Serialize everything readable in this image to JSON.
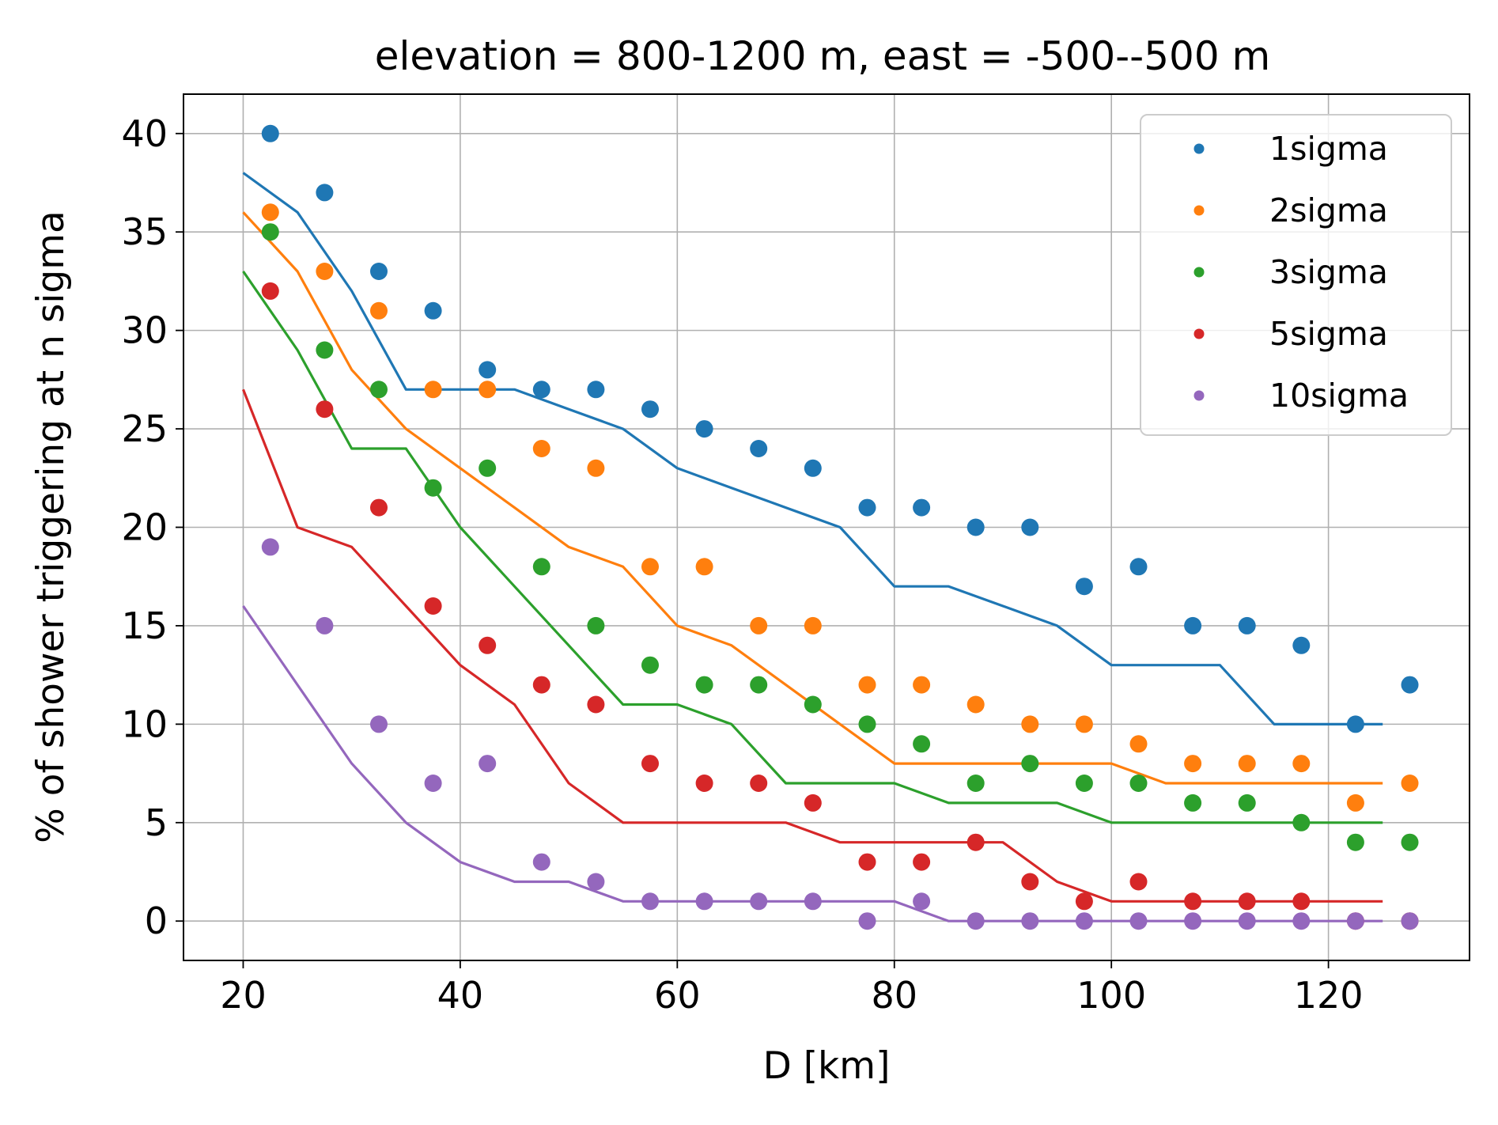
{
  "chart_data": {
    "type": "scatter",
    "title": "elevation = 800-1200 m, east = -500--500 m",
    "xlabel": "D [km]",
    "ylabel": "% of shower triggering at n sigma",
    "xlim": [
      14.5,
      133
    ],
    "ylim": [
      -2,
      42
    ],
    "xticks": [
      20,
      40,
      60,
      80,
      100,
      120
    ],
    "yticks": [
      0,
      5,
      10,
      15,
      20,
      25,
      30,
      35,
      40
    ],
    "grid": true,
    "legend_position": "top-right",
    "line_x": [
      20,
      25,
      30,
      35,
      40,
      45,
      50,
      55,
      60,
      65,
      70,
      75,
      80,
      85,
      90,
      95,
      100,
      105,
      110,
      115,
      120,
      125
    ],
    "point_x": [
      22.5,
      27.5,
      32.5,
      37.5,
      42.5,
      47.5,
      52.5,
      57.5,
      62.5,
      67.5,
      72.5,
      77.5,
      82.5,
      87.5,
      92.5,
      97.5,
      102.5,
      107.5,
      112.5,
      117.5,
      122.5,
      127.5
    ],
    "series": [
      {
        "name": "1sigma",
        "color": "#1f77b4",
        "points": [
          40,
          37,
          33,
          31,
          28,
          27,
          27,
          26,
          25,
          24,
          23,
          21,
          21,
          20,
          20,
          17,
          18,
          15,
          15,
          14,
          10,
          12
        ],
        "line": [
          38,
          36,
          32,
          27,
          27,
          27,
          26,
          25,
          23,
          22,
          21,
          20,
          17,
          17,
          16,
          15,
          13,
          13,
          13,
          10,
          10,
          10
        ]
      },
      {
        "name": "2sigma",
        "color": "#ff7f0e",
        "points": [
          36,
          33,
          31,
          27,
          27,
          24,
          23,
          18,
          18,
          15,
          15,
          12,
          12,
          11,
          10,
          10,
          9,
          8,
          8,
          8,
          6,
          7
        ],
        "line": [
          36,
          33,
          28,
          25,
          23,
          21,
          19,
          18,
          15,
          14,
          12,
          10,
          8,
          8,
          8,
          8,
          8,
          7,
          7,
          7,
          7,
          7
        ]
      },
      {
        "name": "3sigma",
        "color": "#2ca02c",
        "points": [
          35,
          29,
          27,
          22,
          23,
          18,
          15,
          13,
          12,
          12,
          11,
          10,
          9,
          7,
          8,
          7,
          7,
          6,
          6,
          5,
          4,
          4
        ],
        "line": [
          33,
          29,
          24,
          24,
          20,
          17,
          14,
          11,
          11,
          10,
          7,
          7,
          7,
          6,
          6,
          6,
          5,
          5,
          5,
          5,
          5,
          5
        ]
      },
      {
        "name": "5sigma",
        "color": "#d62728",
        "points": [
          32,
          26,
          21,
          16,
          14,
          12,
          11,
          8,
          7,
          7,
          6,
          3,
          3,
          4,
          2,
          1,
          2,
          1,
          1,
          1,
          0,
          0
        ],
        "line": [
          27,
          20,
          19,
          16,
          13,
          11,
          7,
          5,
          5,
          5,
          5,
          4,
          4,
          4,
          4,
          2,
          1,
          1,
          1,
          1,
          1,
          1
        ]
      },
      {
        "name": "10sigma",
        "color": "#9467bd",
        "points": [
          19,
          15,
          10,
          7,
          8,
          3,
          2,
          1,
          1,
          1,
          1,
          0,
          1,
          0,
          0,
          0,
          0,
          0,
          0,
          0,
          0,
          0
        ],
        "line": [
          16,
          12,
          8,
          5,
          3,
          2,
          2,
          1,
          1,
          1,
          1,
          1,
          1,
          0,
          0,
          0,
          0,
          0,
          0,
          0,
          0,
          0
        ]
      }
    ]
  }
}
